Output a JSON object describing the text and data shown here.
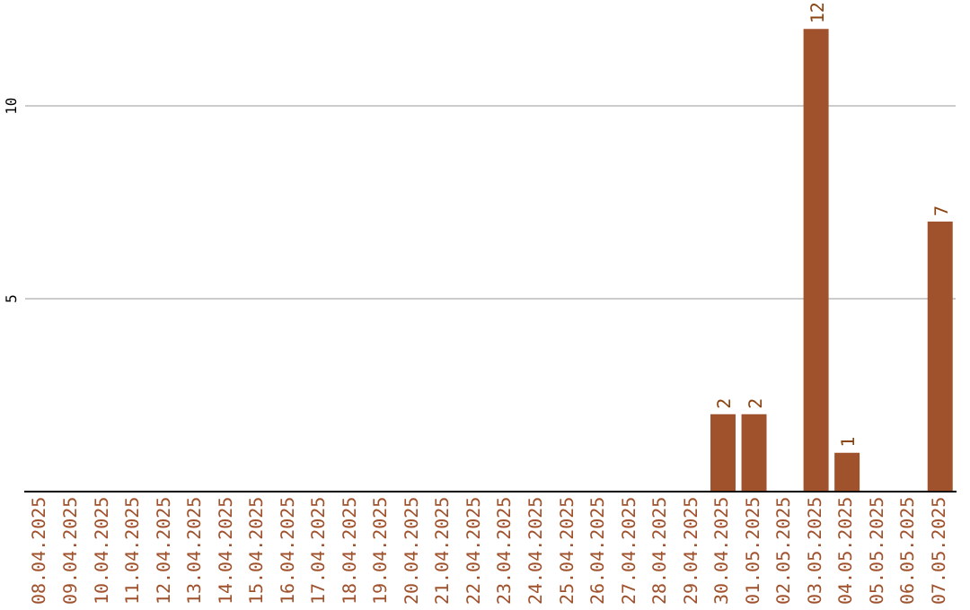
{
  "chart_data": {
    "type": "bar",
    "categories": [
      "08.04.2025",
      "09.04.2025",
      "10.04.2025",
      "11.04.2025",
      "12.04.2025",
      "13.04.2025",
      "14.04.2025",
      "15.04.2025",
      "16.04.2025",
      "17.04.2025",
      "18.04.2025",
      "19.04.2025",
      "20.04.2025",
      "21.04.2025",
      "22.04.2025",
      "23.04.2025",
      "24.04.2025",
      "25.04.2025",
      "26.04.2025",
      "27.04.2025",
      "28.04.2025",
      "29.04.2025",
      "30.04.2025",
      "01.05.2025",
      "02.05.2025",
      "03.05.2025",
      "04.05.2025",
      "05.05.2025",
      "06.05.2025",
      "07.05.2025"
    ],
    "values": [
      0,
      0,
      0,
      0,
      0,
      0,
      0,
      0,
      0,
      0,
      0,
      0,
      0,
      0,
      0,
      0,
      0,
      0,
      0,
      0,
      0,
      0,
      2,
      2,
      0,
      12,
      1,
      0,
      0,
      7
    ],
    "value_labels": [
      null,
      null,
      null,
      null,
      null,
      null,
      null,
      null,
      null,
      null,
      null,
      null,
      null,
      null,
      null,
      null,
      null,
      null,
      null,
      null,
      null,
      null,
      "2",
      "2",
      null,
      "12",
      "1",
      null,
      null,
      "7"
    ],
    "color": "#a0522d",
    "ylim": [
      0,
      12.1
    ],
    "yticks": [
      5,
      10
    ],
    "grid": "y",
    "legend": false
  }
}
